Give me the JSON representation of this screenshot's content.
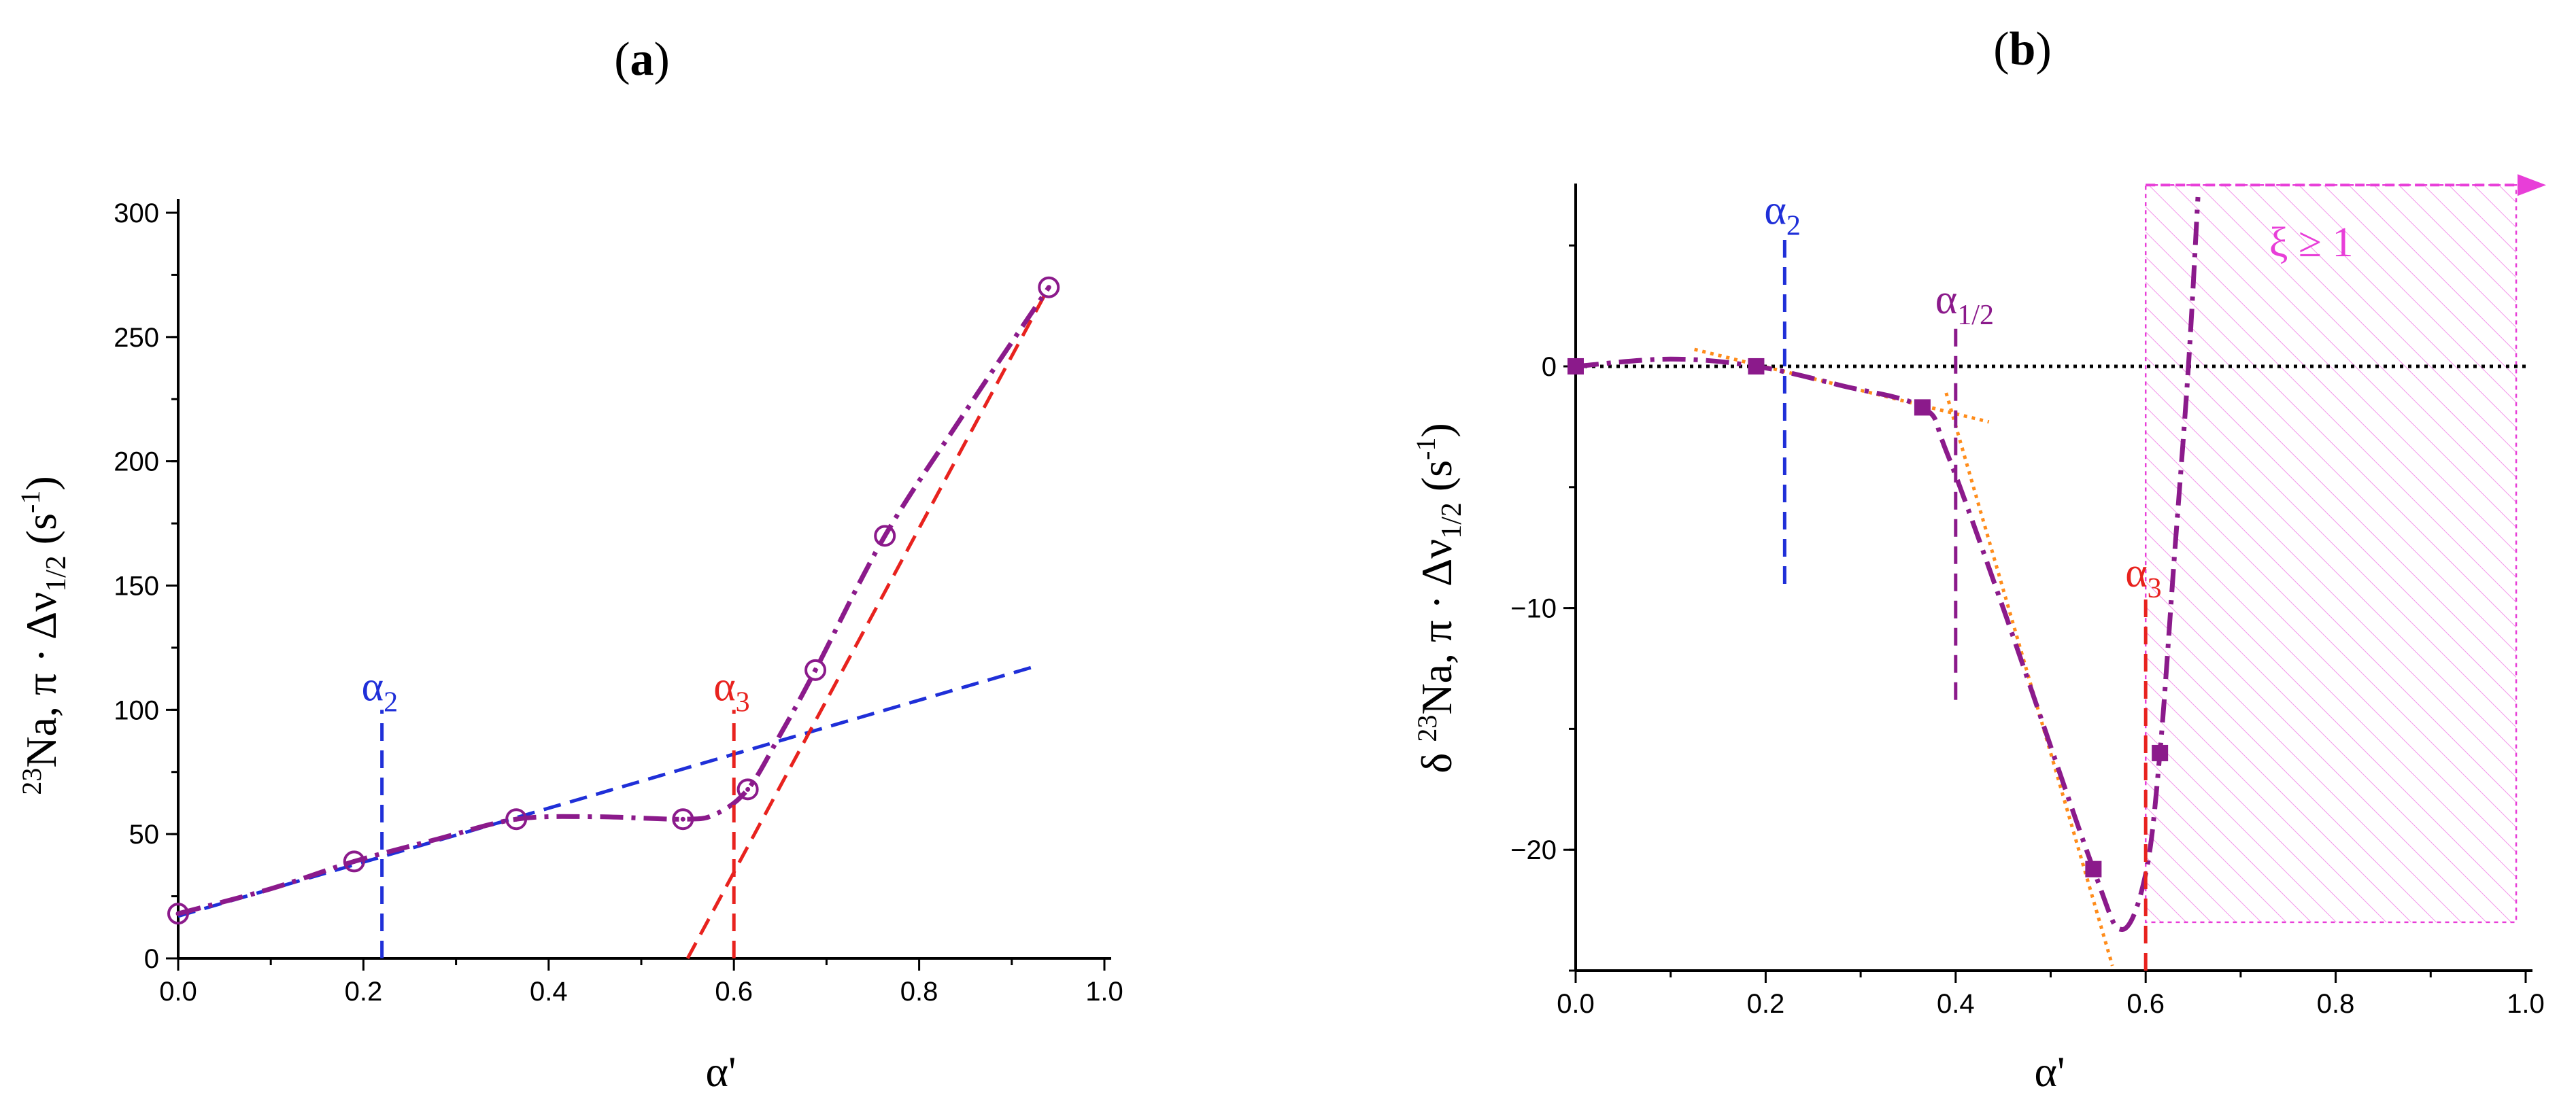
{
  "chart_data": [
    {
      "panel": "(a)",
      "type": "scatter",
      "title_open": "(",
      "title_letter": "a",
      "title_close": ")",
      "xlabel": "α'",
      "ylabel_pre": "23",
      "ylabel_main": "Na, π · Δν",
      "ylabel_sub": "1/2",
      "ylabel_unit": " (s",
      "ylabel_sup": "-1",
      "ylabel_end": ")",
      "xlim": [
        0,
        1.0
      ],
      "ylim": [
        0,
        300
      ],
      "xticks": [
        0.0,
        0.2,
        0.4,
        0.6,
        0.8,
        1.0
      ],
      "xtick_labels": [
        "0.0",
        "0.2",
        "0.4",
        "0.6",
        "0.8",
        "1.0"
      ],
      "yticks": [
        0,
        50,
        100,
        150,
        200,
        250,
        300
      ],
      "ytick_labels": [
        "0",
        "50",
        "100",
        "150",
        "200",
        "250",
        "300"
      ],
      "points": {
        "x": [
          0.0,
          0.19,
          0.365,
          0.545,
          0.615,
          0.688,
          0.763,
          0.94
        ],
        "y": [
          18,
          39,
          56,
          56,
          68,
          116,
          170,
          270
        ],
        "color": "#8B1A8B"
      },
      "fit_curve": {
        "x": [
          0.0,
          0.1,
          0.19,
          0.28,
          0.365,
          0.45,
          0.545,
          0.58,
          0.615,
          0.65,
          0.688,
          0.763,
          0.85,
          0.94
        ],
        "y": [
          18,
          28,
          39,
          48,
          56,
          57,
          56,
          58,
          68,
          90,
          116,
          170,
          220,
          270
        ],
        "color": "#8B1A8B",
        "style": "dash-dot"
      },
      "lines": [
        {
          "name": "low-linear-fit",
          "x": [
            0.0,
            0.93
          ],
          "y": [
            17,
            118
          ],
          "color": "#1f2fd8",
          "style": "dashed"
        },
        {
          "name": "high-linear-fit",
          "x": [
            0.55,
            0.94
          ],
          "y": [
            0,
            270
          ],
          "color": "#e8221e",
          "style": "dashed"
        }
      ],
      "markers": [
        {
          "name": "alpha2",
          "x": 0.22,
          "y_top": 100,
          "label": "α",
          "sub": "2",
          "color": "#1f2fd8"
        },
        {
          "name": "alpha3",
          "x": 0.6,
          "y_top": 100,
          "label": "α",
          "sub": "3",
          "color": "#e8221e"
        }
      ]
    },
    {
      "panel": "(b)",
      "type": "scatter",
      "title_open": "(",
      "title_letter": "b",
      "title_close": ")",
      "xlabel": "α'",
      "ylabel_pre": "δ ",
      "ylabel_iso": "23",
      "ylabel_main": "Na, π · Δν",
      "ylabel_sub": "1/2",
      "ylabel_unit": " (s",
      "ylabel_sup": "-1",
      "ylabel_end": ")",
      "xlim": [
        0,
        1.0
      ],
      "ylim": [
        -25,
        7
      ],
      "xticks": [
        0.0,
        0.2,
        0.4,
        0.6,
        0.8,
        1.0
      ],
      "xtick_labels": [
        "0.0",
        "0.2",
        "0.4",
        "0.6",
        "0.8",
        "1.0"
      ],
      "yticks": [
        -20,
        -10,
        0
      ],
      "ytick_labels": [
        "−20",
        "−10",
        "0"
      ],
      "points": {
        "x": [
          0.0,
          0.19,
          0.365,
          0.545,
          0.615
        ],
        "y": [
          0,
          0,
          -1.7,
          -20.8,
          -16
        ],
        "color": "#8B1A8B"
      },
      "fit_curve": {
        "x": [
          0.0,
          0.1,
          0.19,
          0.28,
          0.365,
          0.39,
          0.45,
          0.545,
          0.575,
          0.6,
          0.615,
          0.63,
          0.645,
          0.655
        ],
        "y": [
          0,
          0.3,
          0,
          -0.8,
          -1.7,
          -3.5,
          -10,
          -20.8,
          -23.3,
          -21,
          -16,
          -8,
          0,
          7
        ],
        "color": "#8B1A8B",
        "style": "dash-dot"
      },
      "lines": [
        {
          "name": "tangent-1",
          "x": [
            0.125,
            0.435
          ],
          "y": [
            0.7,
            -2.3
          ],
          "color": "#ff8c1a",
          "style": "dotted"
        },
        {
          "name": "tangent-2",
          "x": [
            0.39,
            0.565
          ],
          "y": [
            -1.1,
            -24.8
          ],
          "color": "#ff8c1a",
          "style": "dotted"
        },
        {
          "name": "zero-line",
          "x": [
            0.0,
            1.0
          ],
          "y": [
            0,
            0
          ],
          "color": "#000000",
          "style": "dotted"
        }
      ],
      "markers": [
        {
          "name": "alpha2",
          "x": 0.22,
          "y_bottom": -9,
          "y_top": 5.5,
          "label": "α",
          "sub": "2",
          "color": "#1f2fd8"
        },
        {
          "name": "alpha-half",
          "x": 0.4,
          "y_bottom": -13.8,
          "y_top": 1.8,
          "label": "α",
          "sub": "1/2",
          "color": "#8B1A8B"
        },
        {
          "name": "alpha3",
          "x": 0.6,
          "y_bottom": -25,
          "y_top": -9.5,
          "label": "α",
          "sub": "3",
          "color": "#e8221e"
        }
      ],
      "shaded_region": {
        "x_start": 0.6,
        "x_end": 0.99,
        "y_top": 7.5,
        "y_bottom": -23,
        "color": "#e83ed8"
      },
      "region_label": "ξ ≥ 1"
    }
  ]
}
